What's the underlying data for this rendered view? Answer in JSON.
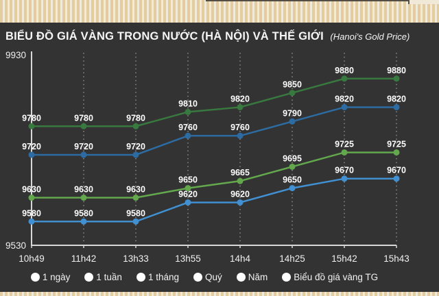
{
  "page": {
    "title": "BIỂU ĐỒ GIÁ VÀNG TRONG NƯỚC (HÀ NỘI) VÀ THẾ GIỚI",
    "subtitle": "(Hanoi's Gold Price)"
  },
  "colors": {
    "panel_bg": "#333333",
    "stripe_tan": "#e3cc9f",
    "stripe_light": "#f1ead9",
    "axis": "#d8d8d8",
    "grid_dot": "#9a9a9a",
    "tick_label": "#f0f0f0",
    "data_label": "#ffffff",
    "series_green_dark": "#38793f",
    "series_blue_dark": "#2d6ca3",
    "series_green_light": "#64a84e",
    "series_blue_light": "#4190d2"
  },
  "chart_data": {
    "type": "line",
    "title": "BIỂU ĐỒ GIÁ VÀNG TRONG NƯỚC (HÀ NỘI) VÀ THẾ GIỚI (Hanoi's Gold Price)",
    "categories": [
      "10h49",
      "11h42",
      "13h33",
      "13h55",
      "14h4",
      "14h25",
      "15h42",
      "15h43"
    ],
    "series": [
      {
        "name": "green-dark-upper",
        "color": "#38793f",
        "values": [
          9780,
          9780,
          9780,
          9810,
          9820,
          9850,
          9880,
          9880
        ]
      },
      {
        "name": "blue-dark-upper",
        "color": "#2d6ca3",
        "values": [
          9720,
          9720,
          9720,
          9760,
          9760,
          9790,
          9820,
          9820
        ]
      },
      {
        "name": "green-light-lower",
        "color": "#64a84e",
        "values": [
          9630,
          9630,
          9630,
          9650,
          9665,
          9695,
          9725,
          9725
        ]
      },
      {
        "name": "blue-light-lower",
        "color": "#4190d2",
        "values": [
          9580,
          9580,
          9580,
          9620,
          9620,
          9650,
          9670,
          9670
        ]
      }
    ],
    "ylim": [
      9530,
      9930
    ],
    "yticks": [
      9930,
      9530
    ],
    "grid": "vertical-dotted",
    "legend_position": "none",
    "point_labels": true
  },
  "controls": {
    "options": [
      {
        "label": "1 ngày"
      },
      {
        "label": "1 tuần"
      },
      {
        "label": "1 tháng"
      },
      {
        "label": "Quý"
      },
      {
        "label": "Năm"
      },
      {
        "label": "Biểu đồ giá vàng TG"
      }
    ]
  }
}
